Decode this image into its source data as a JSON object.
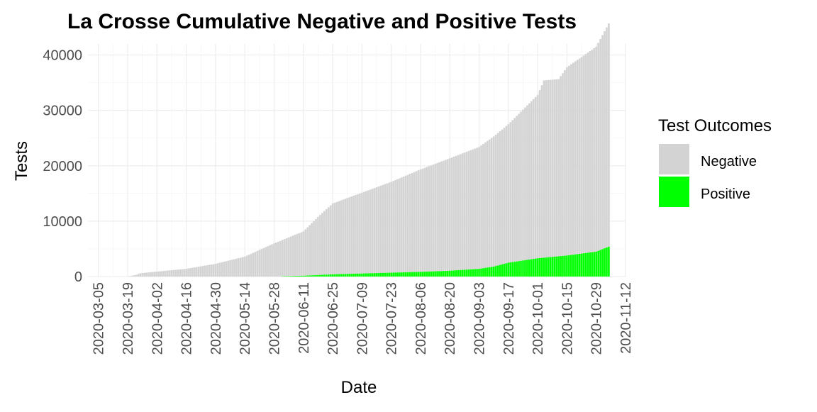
{
  "chart_data": {
    "type": "bar",
    "stacked": true,
    "title": "La Crosse Cumulative Negative and Positive Tests",
    "xlabel": "Date",
    "ylabel": "Tests",
    "x_axis": {
      "type": "date",
      "range": [
        "2020-02-29",
        "2020-11-12"
      ],
      "ticks": [
        "2020-03-05",
        "2020-03-19",
        "2020-04-02",
        "2020-04-16",
        "2020-04-30",
        "2020-05-14",
        "2020-05-28",
        "2020-06-11",
        "2020-06-25",
        "2020-07-09",
        "2020-07-23",
        "2020-08-06",
        "2020-08-20",
        "2020-09-03",
        "2020-09-17",
        "2020-10-01",
        "2020-10-15",
        "2020-10-29",
        "2020-11-12"
      ]
    },
    "y_axis": {
      "range": [
        0,
        42000
      ],
      "ticks": [
        0,
        10000,
        20000,
        30000,
        40000
      ],
      "tick_labels": [
        "0",
        "10000",
        "20000",
        "30000",
        "40000"
      ]
    },
    "grid": true,
    "legend": {
      "title": "Test Outcomes",
      "position": "right"
    },
    "series": [
      {
        "name": "Negative",
        "color": "#d3d3d3",
        "points": [
          [
            "2020-03-05",
            0
          ],
          [
            "2020-03-19",
            0
          ],
          [
            "2020-03-23",
            300
          ],
          [
            "2020-03-25",
            600
          ],
          [
            "2020-04-02",
            900
          ],
          [
            "2020-04-16",
            1400
          ],
          [
            "2020-04-30",
            2300
          ],
          [
            "2020-05-14",
            3600
          ],
          [
            "2020-05-28",
            6000
          ],
          [
            "2020-06-11",
            8000
          ],
          [
            "2020-06-18",
            10500
          ],
          [
            "2020-06-25",
            12800
          ],
          [
            "2020-07-09",
            14600
          ],
          [
            "2020-07-23",
            16400
          ],
          [
            "2020-08-06",
            18500
          ],
          [
            "2020-08-20",
            20300
          ],
          [
            "2020-09-03",
            22000
          ],
          [
            "2020-09-17",
            25000
          ],
          [
            "2020-10-01",
            29500
          ],
          [
            "2020-10-04",
            32000
          ],
          [
            "2020-10-11",
            32000
          ],
          [
            "2020-10-15",
            34000
          ],
          [
            "2020-10-29",
            37000
          ],
          [
            "2020-11-04",
            40300
          ]
        ]
      },
      {
        "name": "Positive",
        "color": "#00ff00",
        "points": [
          [
            "2020-05-31",
            0
          ],
          [
            "2020-06-01",
            50
          ],
          [
            "2020-06-11",
            150
          ],
          [
            "2020-06-25",
            400
          ],
          [
            "2020-07-09",
            550
          ],
          [
            "2020-07-23",
            700
          ],
          [
            "2020-08-06",
            850
          ],
          [
            "2020-08-20",
            1050
          ],
          [
            "2020-09-03",
            1400
          ],
          [
            "2020-09-10",
            1800
          ],
          [
            "2020-09-17",
            2500
          ],
          [
            "2020-10-01",
            3300
          ],
          [
            "2020-10-15",
            3800
          ],
          [
            "2020-10-29",
            4500
          ],
          [
            "2020-11-04",
            5400
          ]
        ]
      }
    ]
  }
}
